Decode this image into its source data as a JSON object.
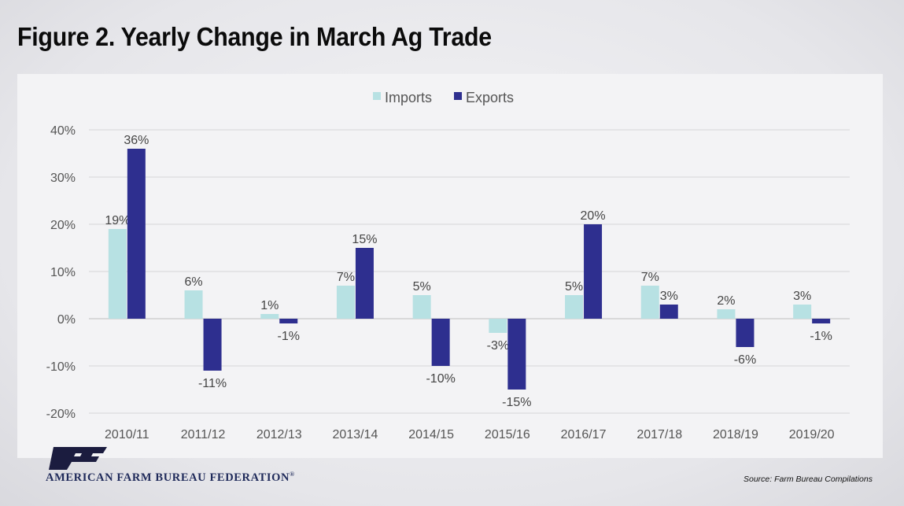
{
  "title": "Figure 2. Yearly Change in March Ag Trade",
  "footer": {
    "organization": "AMERICAN FARM BUREAU FEDERATION",
    "registered_mark": "®",
    "source": "Source: Farm Bureau Compilations"
  },
  "colors": {
    "imports": "#b7e1e3",
    "exports": "#2e2f8f",
    "logo": "#1b1c3f"
  },
  "chart_data": {
    "type": "bar",
    "title": "",
    "xlabel": "",
    "ylabel": "",
    "categories": [
      "2010/11",
      "2011/12",
      "2012/13",
      "2013/14",
      "2014/15",
      "2015/16",
      "2016/17",
      "2017/18",
      "2018/19",
      "2019/20"
    ],
    "series": [
      {
        "name": "Imports",
        "values": [
          19,
          6,
          1,
          7,
          5,
          -3,
          5,
          7,
          2,
          3
        ],
        "labels": [
          "19%",
          "6%",
          "1%",
          "7%",
          "5%",
          "-3%",
          "5%",
          "7%",
          "2%",
          "3%"
        ]
      },
      {
        "name": "Exports",
        "values": [
          36,
          -11,
          -1,
          15,
          -10,
          -15,
          20,
          3,
          -6,
          -1
        ],
        "labels": [
          "36%",
          "-11%",
          "-1%",
          "15%",
          "-10%",
          "-15%",
          "20%",
          "3%",
          "-6%",
          "-1%"
        ]
      }
    ],
    "ylim": [
      -20,
      40
    ],
    "yticks": [
      -20,
      -10,
      0,
      10,
      20,
      30,
      40
    ],
    "ytick_labels": [
      "-20%",
      "-10%",
      "0%",
      "10%",
      "20%",
      "30%",
      "40%"
    ],
    "grid": true,
    "legend": "top-center"
  }
}
